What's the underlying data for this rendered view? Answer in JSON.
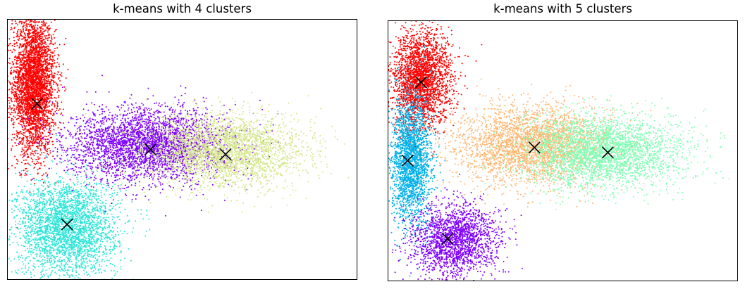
{
  "chart_data": [
    {
      "type": "scatter",
      "title": "k-means with 4 clusters",
      "xlabel": "",
      "ylabel": "",
      "axes_ticks": "none",
      "xlim": [
        -4.5,
        6.0
      ],
      "ylim": [
        -4.0,
        4.0
      ],
      "grid": false,
      "legend": "none",
      "marker_size": 1,
      "series": [
        {
          "color": "#ff0000",
          "points_approx": 3500,
          "region_center": [
            -3.7,
            2.0
          ],
          "spread": [
            0.32,
            1.05
          ]
        },
        {
          "color": "#2ee6d8",
          "points_approx": 3000,
          "region_center": [
            -2.7,
            -2.4
          ],
          "spread": [
            0.75,
            0.75
          ]
        },
        {
          "color": "#7f00ff",
          "points_approx": 3500,
          "region_center": [
            -0.25,
            0.15
          ],
          "spread": [
            1.2,
            0.55
          ]
        },
        {
          "color": "#d4e68a",
          "points_approx": 3000,
          "region_center": [
            2.0,
            -0.05
          ],
          "spread": [
            1.2,
            0.55
          ]
        }
      ],
      "centroids": {
        "marker": "x",
        "color": "#000000",
        "points": [
          [
            -3.6,
            1.4
          ],
          [
            -2.7,
            -2.3
          ],
          [
            -0.2,
            0.0
          ],
          [
            2.05,
            -0.15
          ]
        ]
      }
    },
    {
      "type": "scatter",
      "title": "k-means with 5 clusters",
      "xlabel": "",
      "ylabel": "",
      "axes_ticks": "none",
      "xlim": [
        -4.5,
        6.0
      ],
      "ylim": [
        -4.0,
        4.0
      ],
      "grid": false,
      "legend": "none",
      "marker_size": 1,
      "series": [
        {
          "color": "#ff0000",
          "points_approx": 2600,
          "region_center": [
            -3.5,
            2.2
          ],
          "spread": [
            0.45,
            0.75
          ]
        },
        {
          "color": "#00b0e8",
          "points_approx": 2200,
          "region_center": [
            -3.8,
            -0.3
          ],
          "spread": [
            0.3,
            1.0
          ]
        },
        {
          "color": "#8000ff",
          "points_approx": 2000,
          "region_center": [
            -2.5,
            -2.75
          ],
          "spread": [
            0.65,
            0.55
          ]
        },
        {
          "color": "#ffb670",
          "points_approx": 3000,
          "region_center": [
            -0.2,
            0.2
          ],
          "spread": [
            1.15,
            0.6
          ]
        },
        {
          "color": "#80ffb4",
          "points_approx": 3000,
          "region_center": [
            2.0,
            -0.05
          ],
          "spread": [
            1.15,
            0.55
          ]
        }
      ],
      "centroids": {
        "marker": "x",
        "color": "#000000",
        "points": [
          [
            -3.5,
            2.1
          ],
          [
            -3.9,
            -0.3
          ],
          [
            -2.7,
            -2.7
          ],
          [
            -0.1,
            0.1
          ],
          [
            2.1,
            -0.05
          ]
        ]
      }
    }
  ]
}
